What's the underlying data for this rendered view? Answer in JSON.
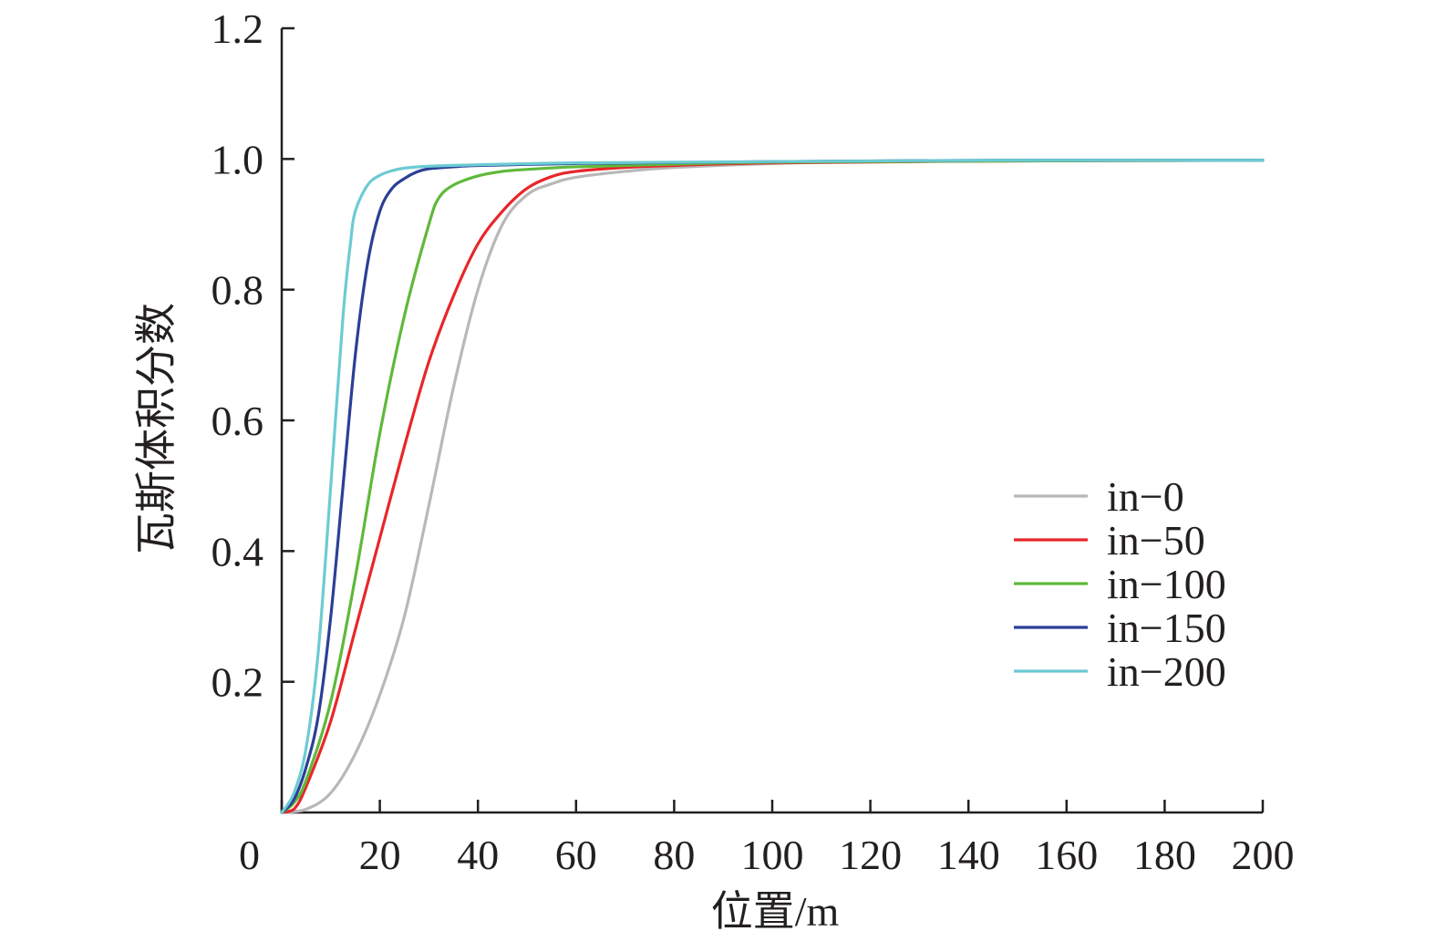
{
  "chart_data": {
    "type": "line",
    "title": "",
    "xlabel": "位置/m",
    "ylabel": "瓦斯体积分数",
    "xlim": [
      0,
      200
    ],
    "ylim": [
      0,
      1.2
    ],
    "xticks": [
      0,
      20,
      40,
      60,
      80,
      100,
      120,
      140,
      160,
      180,
      200
    ],
    "yticks": [
      0.2,
      0.4,
      0.6,
      0.8,
      1.0,
      1.2
    ],
    "xtick_labels": [
      "0",
      "20",
      "40",
      "60",
      "80",
      "100",
      "120",
      "140",
      "160",
      "180",
      "200"
    ],
    "ytick_labels": [
      "0.2",
      "0.4",
      "0.6",
      "0.8",
      "1.0",
      "1.2"
    ],
    "grid": false,
    "legend_position": "center-right",
    "series": [
      {
        "name": "in−0",
        "color": "#b8b8b8",
        "x": [
          0,
          5,
          10,
          15,
          20,
          25,
          30,
          35,
          40,
          45,
          50,
          55,
          60,
          70,
          80,
          100,
          120,
          150,
          200
        ],
        "y": [
          0,
          0.005,
          0.03,
          0.09,
          0.18,
          0.3,
          0.47,
          0.65,
          0.8,
          0.9,
          0.945,
          0.962,
          0.972,
          0.981,
          0.987,
          0.993,
          0.996,
          0.998,
          0.998
        ]
      },
      {
        "name": "in−50",
        "color": "#e8262a",
        "x": [
          0,
          2.5,
          5,
          10,
          15,
          20,
          25,
          30,
          35,
          40,
          45,
          50,
          55,
          60,
          70,
          80,
          100,
          150,
          200
        ],
        "y": [
          0,
          0.005,
          0.04,
          0.14,
          0.28,
          0.42,
          0.56,
          0.69,
          0.79,
          0.87,
          0.92,
          0.955,
          0.973,
          0.981,
          0.987,
          0.99,
          0.994,
          0.997,
          0.998
        ]
      },
      {
        "name": "in−100",
        "color": "#5fb93a",
        "x": [
          0,
          2.5,
          5,
          10,
          15,
          20,
          25,
          30,
          32,
          35,
          40,
          45,
          50,
          60,
          80,
          100,
          150,
          200
        ],
        "y": [
          0,
          0.015,
          0.05,
          0.17,
          0.36,
          0.58,
          0.76,
          0.9,
          0.94,
          0.96,
          0.974,
          0.981,
          0.984,
          0.988,
          0.992,
          0.995,
          0.997,
          0.998
        ]
      },
      {
        "name": "in−150",
        "color": "#2b3f96",
        "x": [
          0,
          2.5,
          5,
          7.5,
          10,
          12.5,
          15,
          17.5,
          20,
          22.5,
          25,
          27.5,
          30,
          35,
          40,
          60,
          100,
          150,
          200
        ],
        "y": [
          0,
          0.02,
          0.07,
          0.15,
          0.3,
          0.5,
          0.7,
          0.84,
          0.92,
          0.955,
          0.97,
          0.98,
          0.985,
          0.988,
          0.99,
          0.993,
          0.996,
          0.998,
          0.998
        ]
      },
      {
        "name": "in−200",
        "color": "#6ccbd3",
        "x": [
          0,
          2.5,
          5,
          7.5,
          10,
          12.5,
          14,
          15,
          17.5,
          20,
          22.5,
          25,
          30,
          40,
          60,
          100,
          150,
          200
        ],
        "y": [
          0,
          0.03,
          0.1,
          0.25,
          0.5,
          0.76,
          0.87,
          0.92,
          0.96,
          0.975,
          0.982,
          0.986,
          0.989,
          0.991,
          0.994,
          0.996,
          0.998,
          0.998
        ]
      }
    ]
  }
}
